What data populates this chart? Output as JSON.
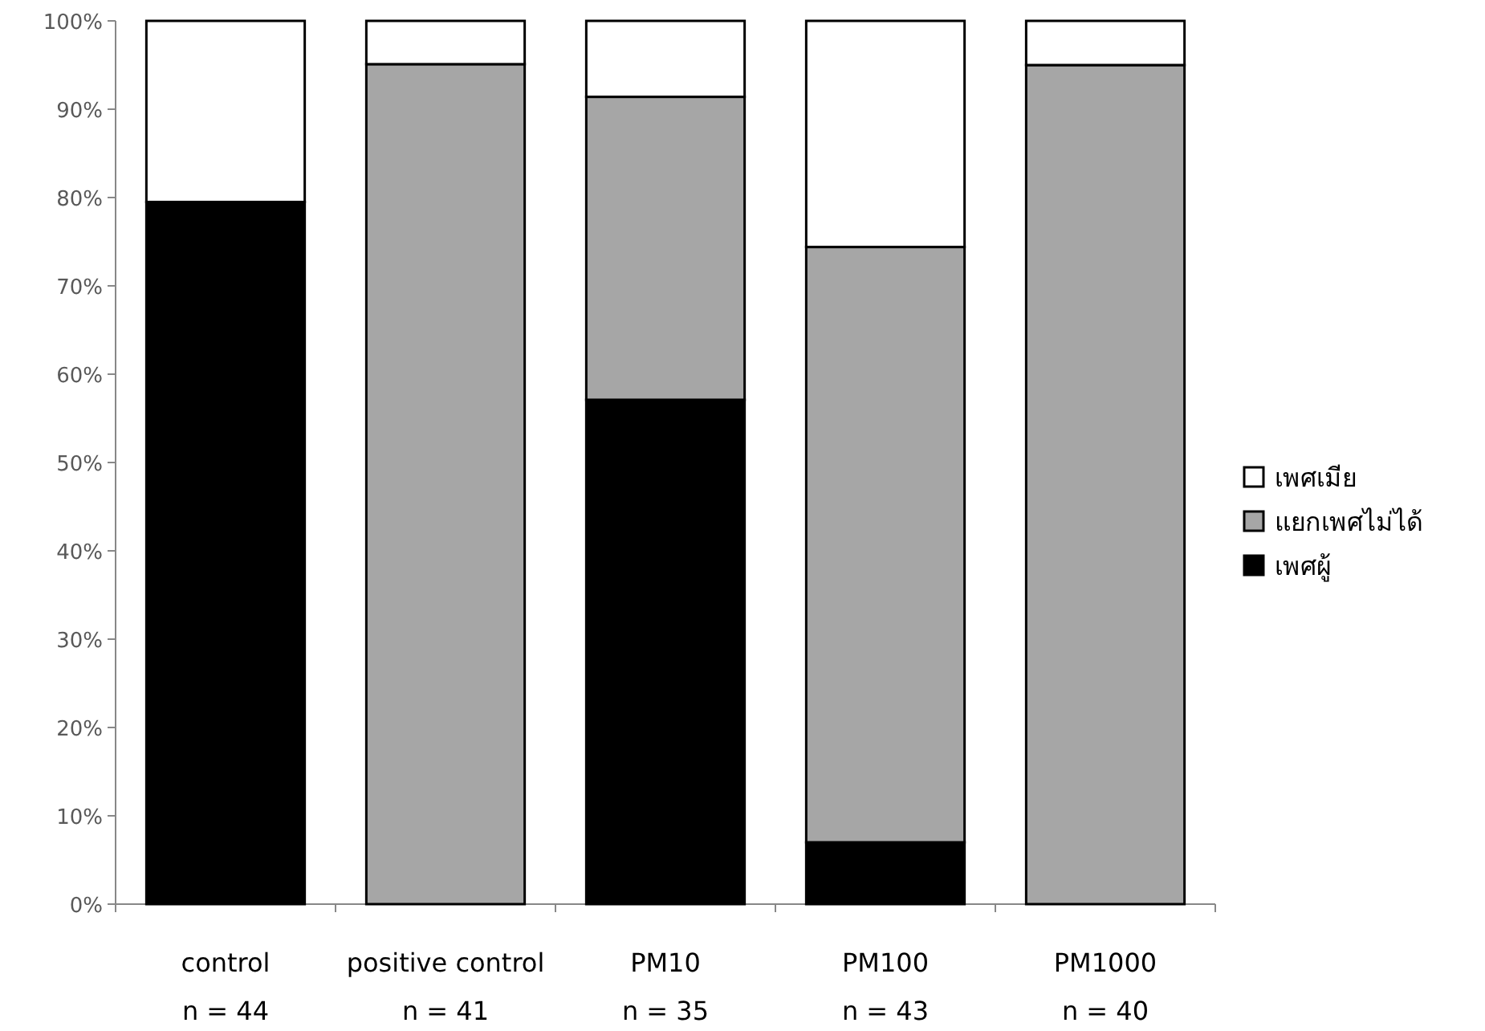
{
  "chart_data": {
    "type": "bar",
    "stacked": true,
    "categories": [
      "control\nn = 44",
      "positive control\nn = 41",
      "PM10\nn = 35",
      "PM100\nn = 43",
      "PM1000\nn = 40"
    ],
    "series": [
      {
        "name": "เพศผู้",
        "color": "#000000",
        "values": [
          79.5,
          null,
          57.1,
          7.0,
          null
        ]
      },
      {
        "name": "แยกเพศไม่ได้",
        "color": "#a6a6a6",
        "values": [
          null,
          95.1,
          34.3,
          67.4,
          95.0
        ]
      },
      {
        "name": "เพศเมีย",
        "color": "#ffffff",
        "values": [
          20.5,
          4.9,
          8.6,
          25.6,
          5.0
        ]
      }
    ],
    "ylim": [
      0,
      100
    ],
    "yticks": [
      {
        "value": 0,
        "label": "0%"
      },
      {
        "value": 10,
        "label": "10%"
      },
      {
        "value": 20,
        "label": "20%"
      },
      {
        "value": 30,
        "label": "30%"
      },
      {
        "value": 40,
        "label": "40%"
      },
      {
        "value": 50,
        "label": "50%"
      },
      {
        "value": 60,
        "label": "60%"
      },
      {
        "value": 70,
        "label": "70%"
      },
      {
        "value": 80,
        "label": "80%"
      },
      {
        "value": 90,
        "label": "90%"
      },
      {
        "value": 100,
        "label": "100%"
      }
    ],
    "legend": "right"
  }
}
